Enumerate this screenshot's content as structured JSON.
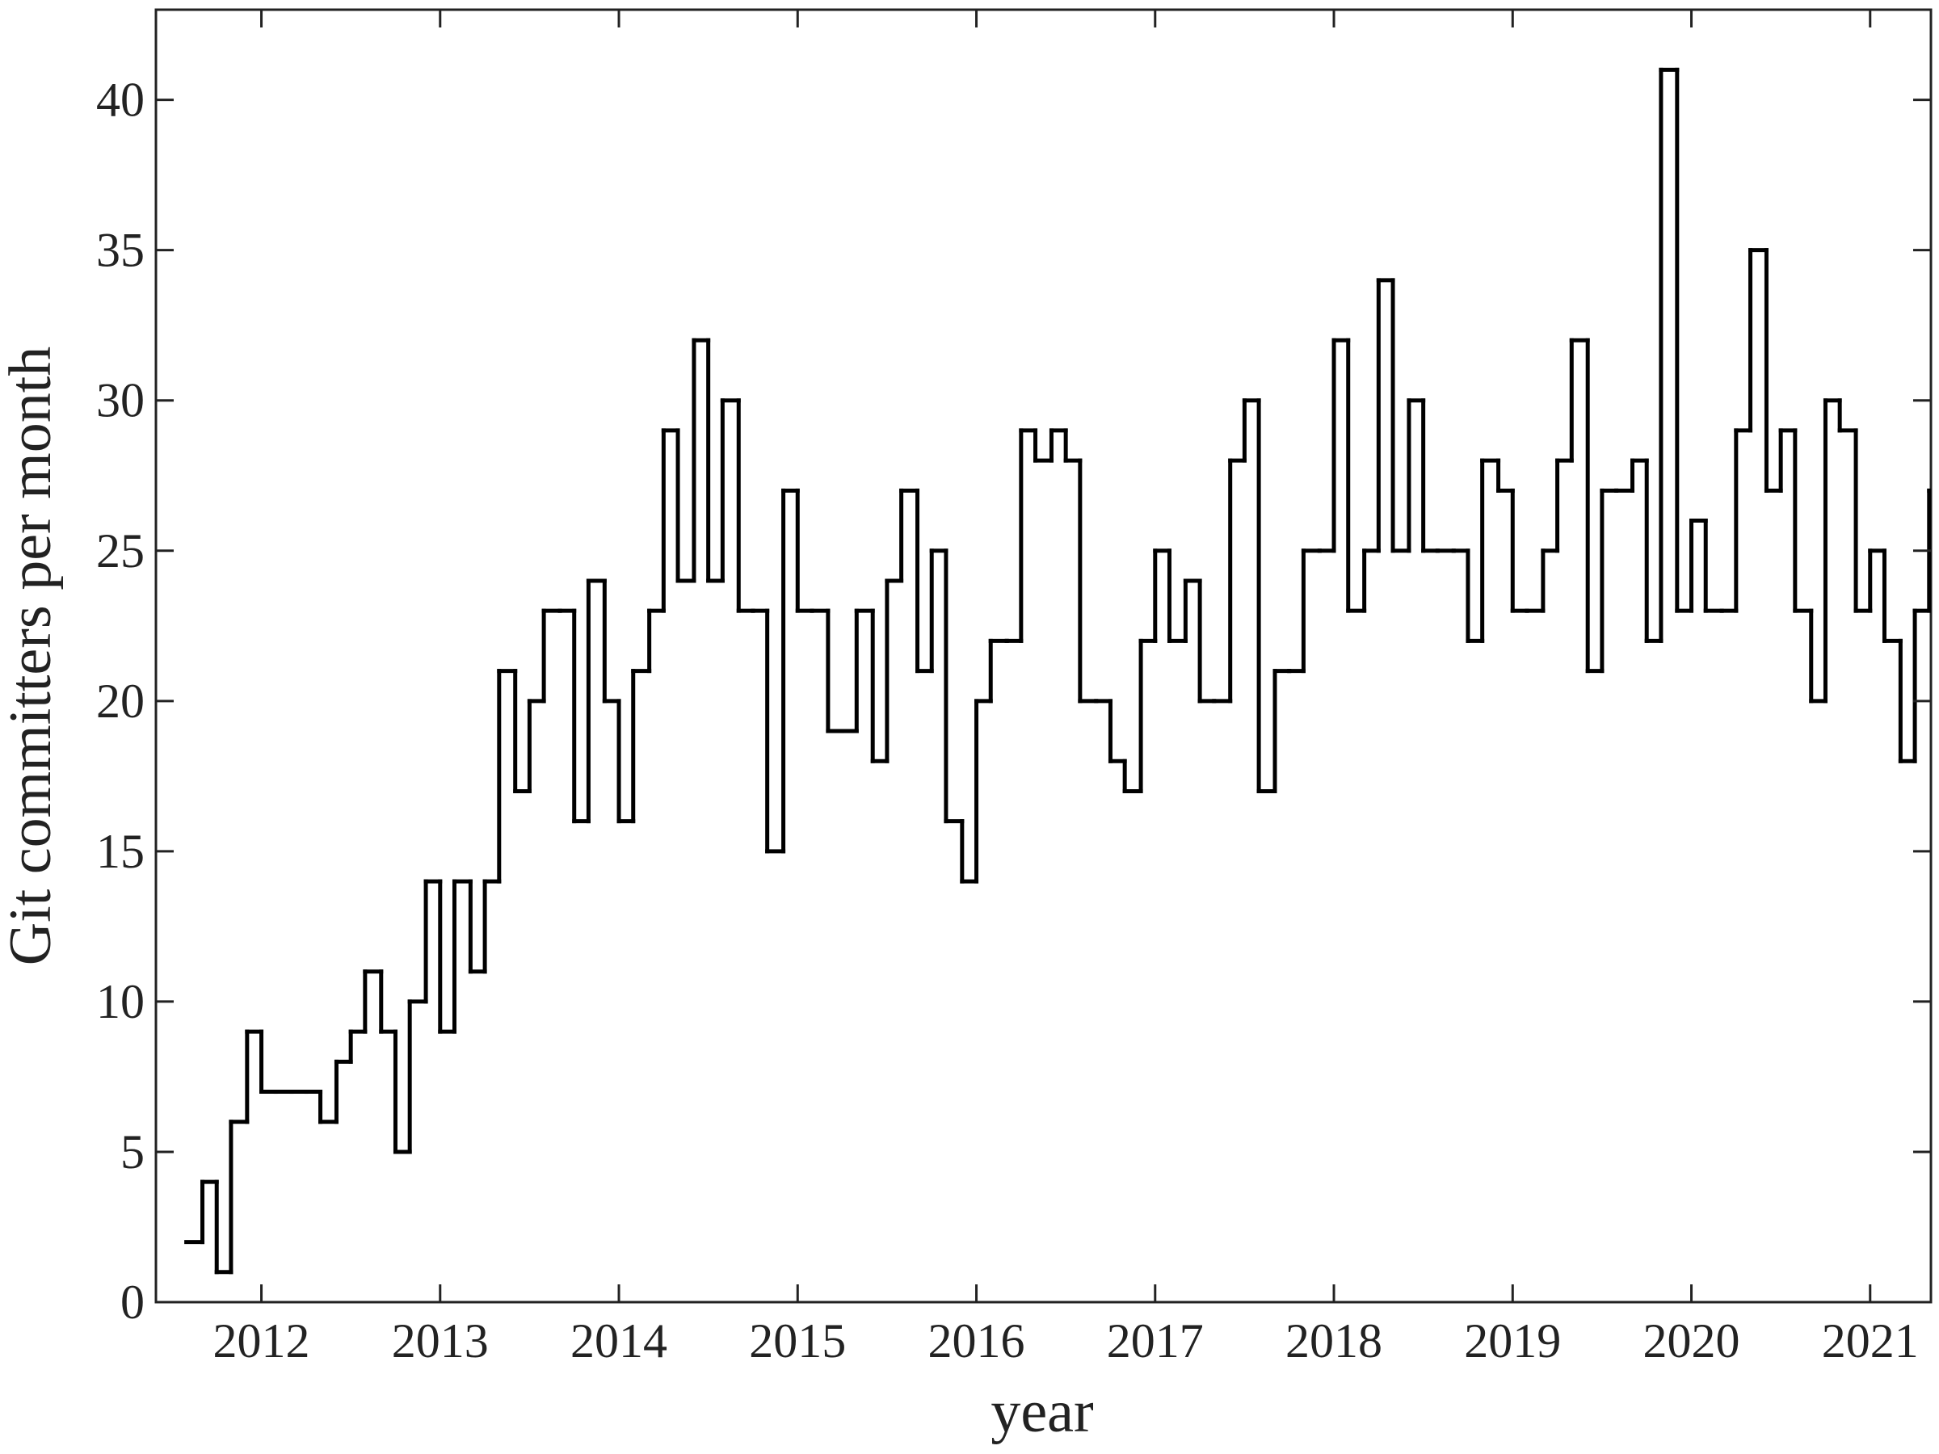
{
  "chart_data": {
    "type": "step",
    "xlabel": "year",
    "ylabel": "Git committers per month",
    "color": "#000000",
    "x": [
      2011.58,
      2011.67,
      2011.75,
      2011.83,
      2011.92,
      2012.0,
      2012.08,
      2012.17,
      2012.25,
      2012.33,
      2012.42,
      2012.5,
      2012.58,
      2012.67,
      2012.75,
      2012.83,
      2012.92,
      2013.0,
      2013.08,
      2013.17,
      2013.25,
      2013.33,
      2013.42,
      2013.5,
      2013.58,
      2013.67,
      2013.75,
      2013.83,
      2013.92,
      2014.0,
      2014.08,
      2014.17,
      2014.25,
      2014.33,
      2014.42,
      2014.5,
      2014.58,
      2014.67,
      2014.75,
      2014.83,
      2014.92,
      2015.0,
      2015.08,
      2015.17,
      2015.25,
      2015.33,
      2015.42,
      2015.5,
      2015.58,
      2015.67,
      2015.75,
      2015.83,
      2015.92,
      2016.0,
      2016.08,
      2016.17,
      2016.25,
      2016.33,
      2016.42,
      2016.5,
      2016.58,
      2016.67,
      2016.75,
      2016.83,
      2016.92,
      2017.0,
      2017.08,
      2017.17,
      2017.25,
      2017.33,
      2017.42,
      2017.5,
      2017.58,
      2017.67,
      2017.75,
      2017.83,
      2017.92,
      2018.0,
      2018.08,
      2018.17,
      2018.25,
      2018.33,
      2018.42,
      2018.5,
      2018.58,
      2018.67,
      2018.75,
      2018.83,
      2018.92,
      2019.0,
      2019.08,
      2019.17,
      2019.25,
      2019.33,
      2019.42,
      2019.5,
      2019.58,
      2019.67,
      2019.75,
      2019.83,
      2019.92,
      2020.0,
      2020.08,
      2020.17,
      2020.25,
      2020.33,
      2020.42,
      2020.5,
      2020.58,
      2020.67,
      2020.75,
      2020.83,
      2020.92,
      2021.0,
      2021.08,
      2021.17,
      2021.25,
      2021.33
    ],
    "values": [
      2,
      4,
      1,
      6,
      9,
      7,
      7,
      7,
      7,
      6,
      8,
      9,
      11,
      9,
      5,
      10,
      14,
      9,
      14,
      11,
      14,
      21,
      17,
      20,
      23,
      23,
      16,
      24,
      20,
      16,
      21,
      23,
      29,
      24,
      32,
      24,
      30,
      23,
      23,
      15,
      27,
      23,
      23,
      19,
      19,
      23,
      18,
      24,
      27,
      21,
      25,
      16,
      14,
      20,
      22,
      22,
      29,
      28,
      29,
      28,
      20,
      20,
      18,
      17,
      22,
      25,
      22,
      24,
      20,
      20,
      28,
      30,
      17,
      21,
      21,
      25,
      25,
      32,
      23,
      25,
      34,
      25,
      30,
      25,
      25,
      25,
      22,
      28,
      27,
      23,
      23,
      25,
      28,
      32,
      21,
      27,
      27,
      28,
      22,
      41,
      23,
      26,
      23,
      23,
      29,
      35,
      27,
      29,
      23,
      20,
      30,
      29,
      23,
      25,
      22,
      18,
      23,
      27
    ],
    "xlim": [
      2011.41,
      2021.34
    ],
    "ylim": [
      0,
      43
    ],
    "xticks": [
      2012,
      2013,
      2014,
      2015,
      2016,
      2017,
      2018,
      2019,
      2020,
      2021
    ],
    "yticks": [
      0,
      5,
      10,
      15,
      20,
      25,
      30,
      35,
      40
    ]
  }
}
